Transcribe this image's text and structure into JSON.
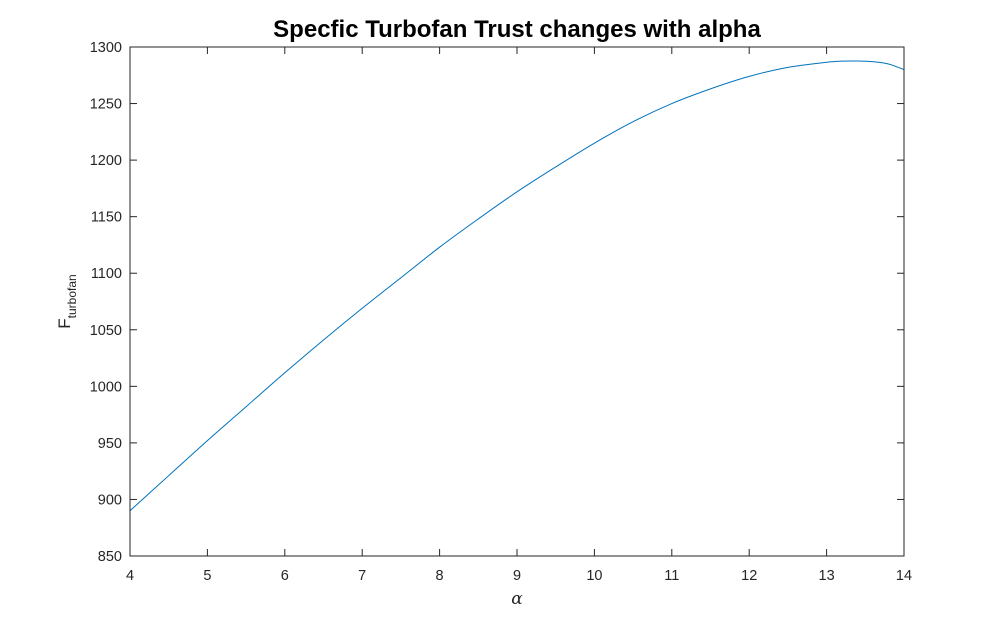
{
  "chart_data": {
    "type": "line",
    "title": "Specfic Turbofan Trust changes with alpha",
    "xlabel": "α",
    "ylabel": {
      "base": "F",
      "subscript": "turbofan"
    },
    "xlim": [
      4,
      14
    ],
    "ylim": [
      850,
      1300
    ],
    "xticks": [
      4,
      5,
      6,
      7,
      8,
      9,
      10,
      11,
      12,
      13,
      14
    ],
    "yticks": [
      850,
      900,
      950,
      1000,
      1050,
      1100,
      1150,
      1200,
      1250,
      1300
    ],
    "grid": false,
    "box": true,
    "series": [
      {
        "color": "#0072BD",
        "x": [
          4,
          4.5,
          5,
          5.5,
          6,
          6.5,
          7,
          7.5,
          8,
          8.5,
          9,
          9.5,
          10,
          10.5,
          11,
          11.5,
          12,
          12.5,
          13,
          13.2,
          13.4,
          13.6,
          13.8,
          14
        ],
        "y": [
          890,
          921,
          952,
          982,
          1012,
          1041,
          1069,
          1096,
          1123,
          1148,
          1172,
          1194,
          1215,
          1234,
          1250,
          1263,
          1274,
          1282,
          1286.5,
          1287.5,
          1287.6,
          1287,
          1285,
          1280
        ]
      }
    ]
  }
}
